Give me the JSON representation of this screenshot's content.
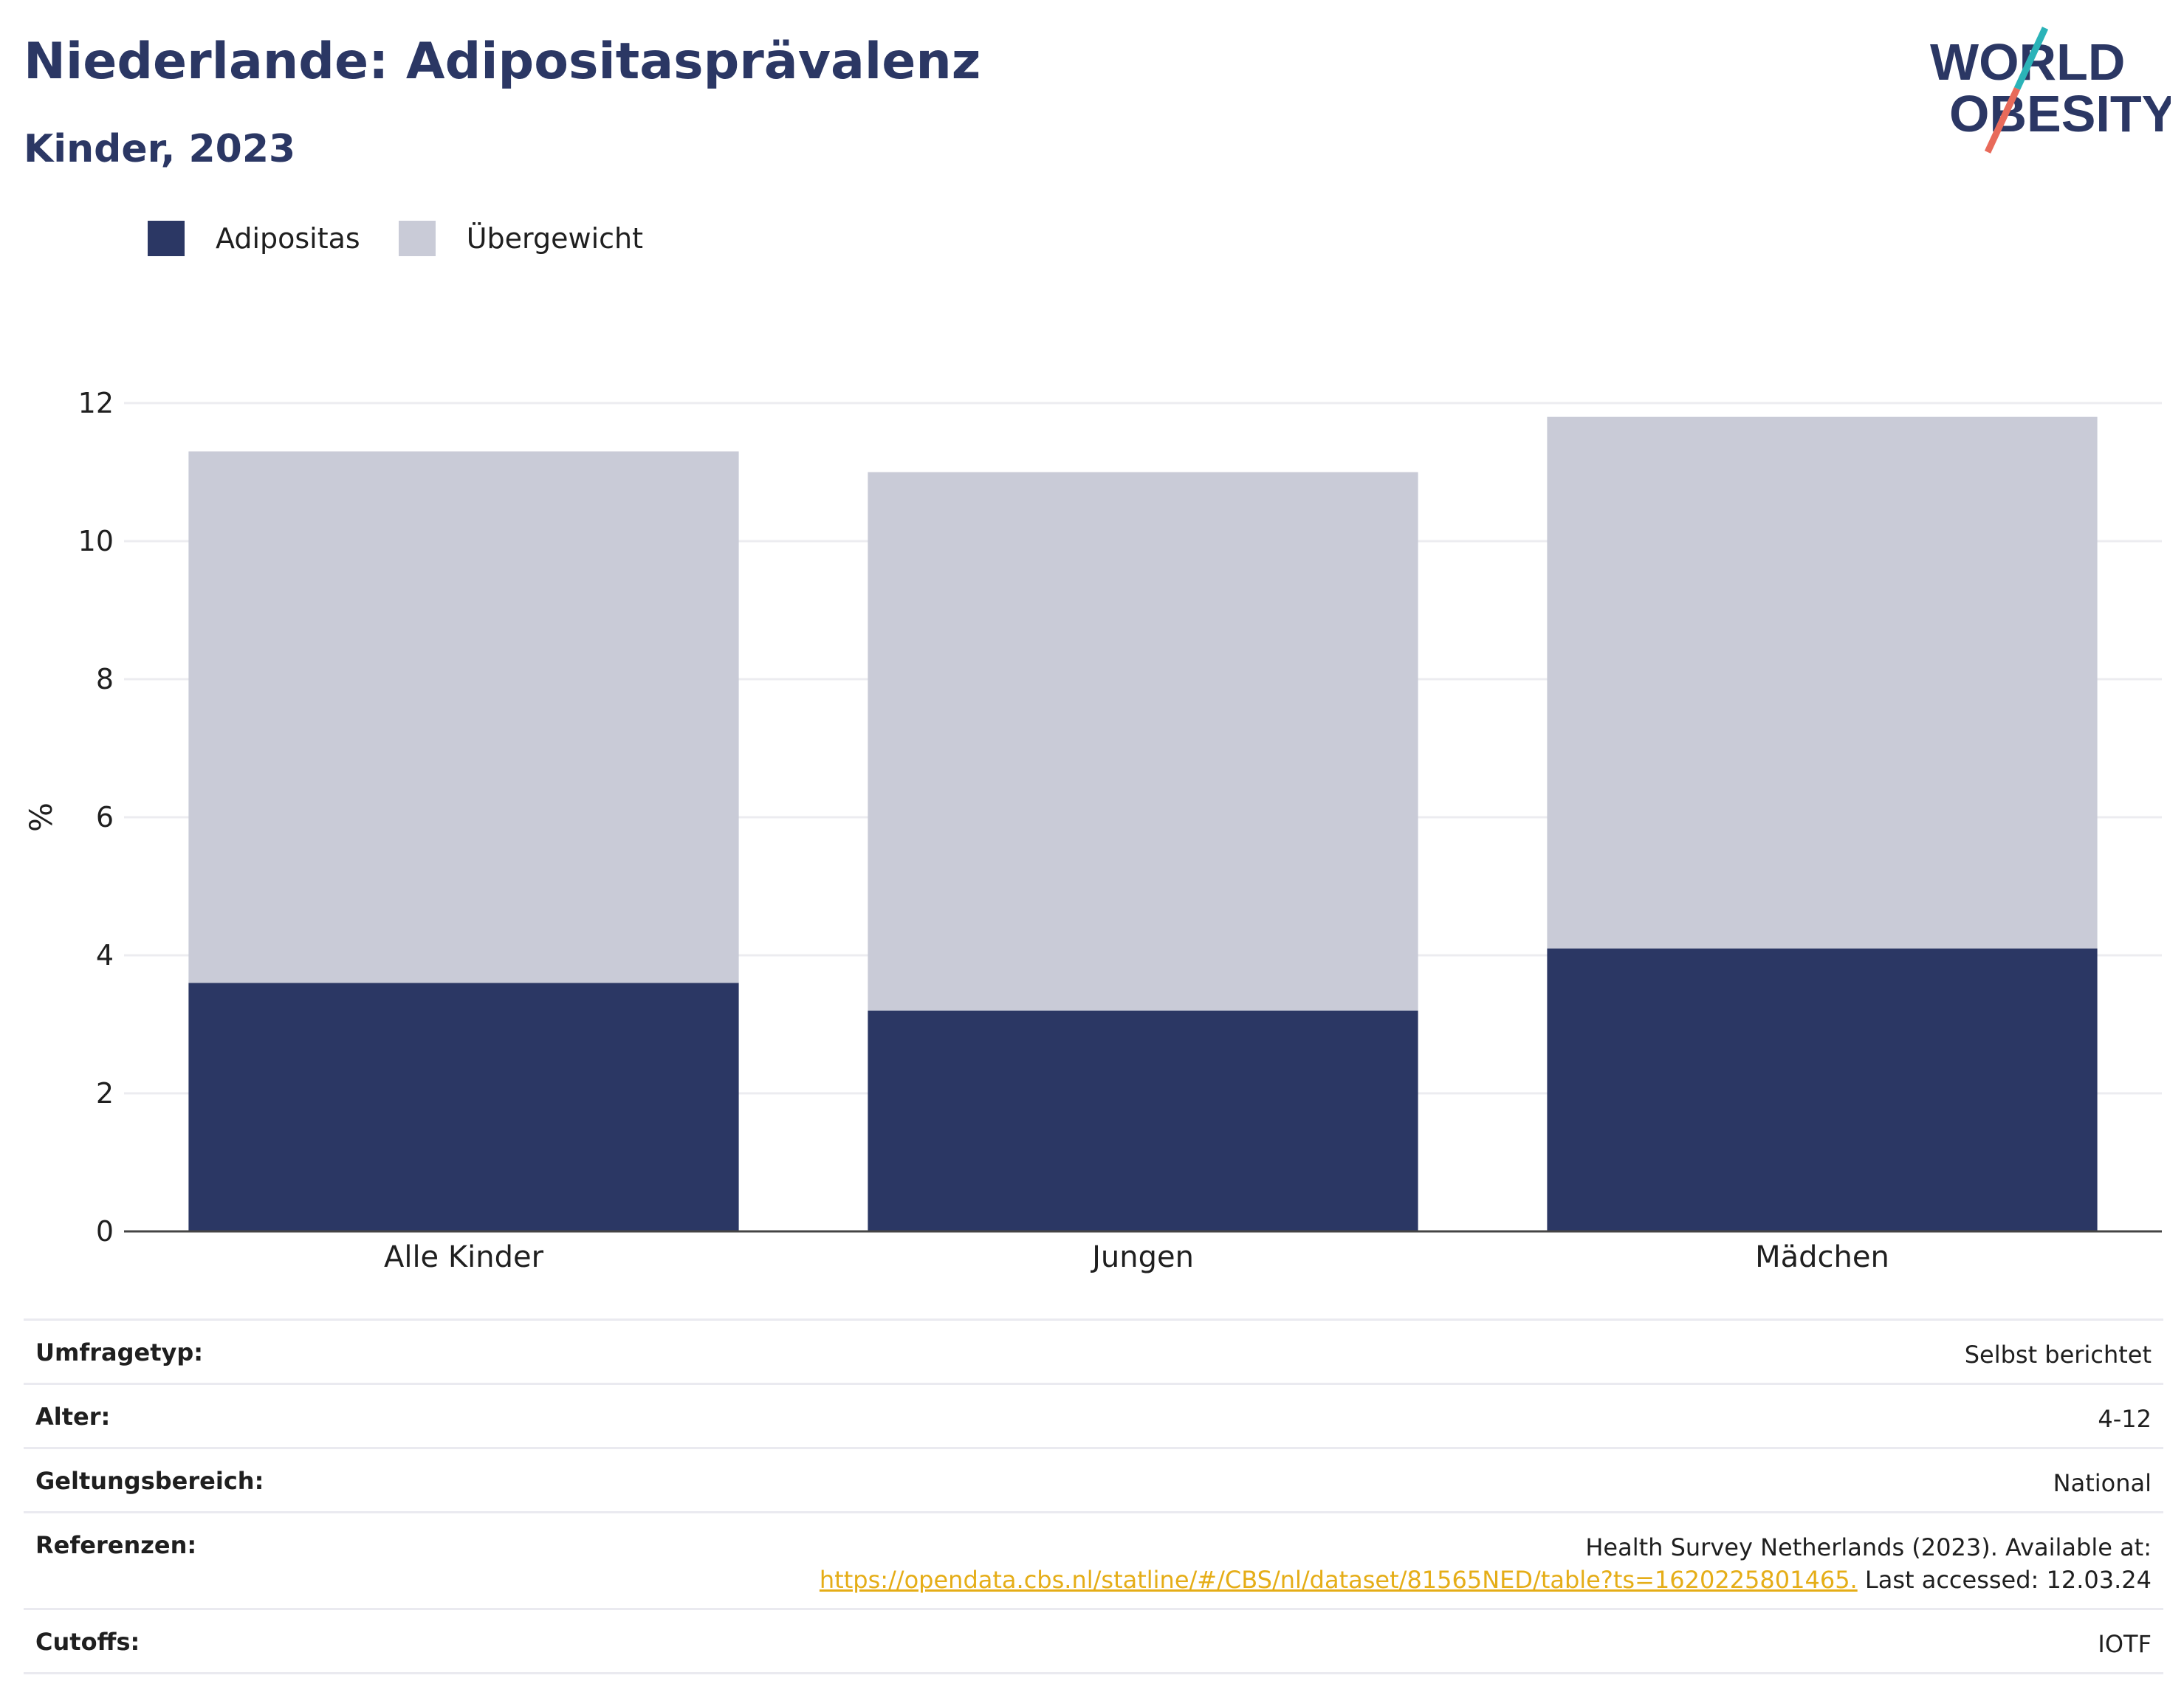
{
  "header": {
    "title": "Niederlande: Adipositasprävalenz",
    "subtitle": "Kinder, 2023",
    "logo_line1": "WORLD",
    "logo_line2": "OBESITY"
  },
  "legend": [
    {
      "label": "Adipositas",
      "color": "#2b3764"
    },
    {
      "label": "Übergewicht",
      "color": "#c9cbd7"
    }
  ],
  "chart_data": {
    "type": "bar",
    "stacked": true,
    "categories": [
      "Alle Kinder",
      "Jungen",
      "Mädchen"
    ],
    "series": [
      {
        "name": "Adipositas",
        "values": [
          3.6,
          3.2,
          4.1
        ],
        "color": "#2b3764"
      },
      {
        "name": "Übergewicht",
        "values": [
          7.7,
          7.8,
          7.7
        ],
        "color": "#c9cbd7"
      }
    ],
    "title": "Niederlande: Adipositasprävalenz",
    "subtitle": "Kinder, 2023",
    "xlabel": "",
    "ylabel": "%",
    "ylim": [
      0,
      12
    ],
    "yticks": [
      0,
      2,
      4,
      6,
      8,
      10,
      12
    ],
    "grid": true,
    "legend_position": "top-left"
  },
  "info": [
    {
      "key": "Umfragetyp:",
      "value": "Selbst berichtet"
    },
    {
      "key": "Alter:",
      "value": "4-12"
    },
    {
      "key": "Geltungsbereich:",
      "value": "National"
    },
    {
      "key": "Referenzen:",
      "value": "Health Survey Netherlands (2023). Available at:",
      "link": "https://opendata.cbs.nl/statline/#/CBS/nl/dataset/81565NED/table?ts=1620225801465.",
      "suffix": " Last accessed: 12.03.24"
    },
    {
      "key": "Cutoffs:",
      "value": "IOTF"
    }
  ]
}
